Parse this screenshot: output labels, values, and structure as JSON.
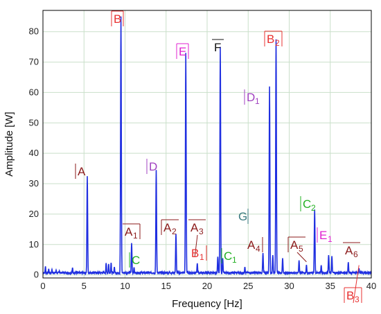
{
  "chart_data": {
    "type": "line",
    "xlabel": "Frequency [Hz]",
    "ylabel": "Amplitude [W]",
    "xlim": [
      0,
      40
    ],
    "ylim": [
      -1,
      87
    ],
    "xticks": [
      0,
      5,
      10,
      15,
      20,
      25,
      30,
      35,
      40
    ],
    "yticks": [
      0,
      10,
      20,
      30,
      40,
      50,
      60,
      70,
      80
    ],
    "grid": true,
    "line_color": "#1f2fe0",
    "baseline": 0.7,
    "peaks": [
      {
        "x": 0.3,
        "y": 2.8
      },
      {
        "x": 0.7,
        "y": 2.0
      },
      {
        "x": 1.1,
        "y": 1.8
      },
      {
        "x": 1.6,
        "y": 1.6
      },
      {
        "x": 2.0,
        "y": 1.4
      },
      {
        "x": 3.6,
        "y": 2.4
      },
      {
        "x": 7.7,
        "y": 3.9
      },
      {
        "x": 8.0,
        "y": 3.6
      },
      {
        "x": 8.3,
        "y": 4.0
      },
      {
        "x": 8.7,
        "y": 2.6
      },
      {
        "x": 5.4,
        "y": 32.5
      },
      {
        "x": 9.5,
        "y": 85.0
      },
      {
        "x": 10.8,
        "y": 10.5
      },
      {
        "x": 11.1,
        "y": 2.5
      },
      {
        "x": 13.8,
        "y": 34.5
      },
      {
        "x": 16.2,
        "y": 13.5
      },
      {
        "x": 17.4,
        "y": 73.0
      },
      {
        "x": 18.8,
        "y": 3.8
      },
      {
        "x": 21.3,
        "y": 6.0
      },
      {
        "x": 21.6,
        "y": 75.0
      },
      {
        "x": 21.9,
        "y": 5.5
      },
      {
        "x": 24.6,
        "y": 2.6
      },
      {
        "x": 26.8,
        "y": 7.2
      },
      {
        "x": 27.6,
        "y": 62.0
      },
      {
        "x": 28.0,
        "y": 6.5
      },
      {
        "x": 28.4,
        "y": 77.5
      },
      {
        "x": 29.2,
        "y": 5.5
      },
      {
        "x": 31.2,
        "y": 4.8
      },
      {
        "x": 32.1,
        "y": 3.3
      },
      {
        "x": 33.1,
        "y": 21.5
      },
      {
        "x": 33.9,
        "y": 3.2
      },
      {
        "x": 34.8,
        "y": 6.5
      },
      {
        "x": 35.2,
        "y": 6.2
      },
      {
        "x": 37.2,
        "y": 4.2
      },
      {
        "x": 38.5,
        "y": 2.2
      }
    ],
    "annotations": [
      {
        "label": "A",
        "sub": "",
        "color": "#8b1a1a",
        "x": 5.4,
        "y": 32.5,
        "box": "left"
      },
      {
        "label": "B",
        "sub": "",
        "color": "#e83030",
        "x": 9.5,
        "y": 85.0,
        "box": "both"
      },
      {
        "label": "A",
        "sub": "1",
        "color": "#8b1a1a",
        "x": 10.8,
        "y": 10.5,
        "box": "top-right"
      },
      {
        "label": "C",
        "sub": "",
        "color": "#22b022",
        "x": 11.1,
        "y": 2.5,
        "box": "left"
      },
      {
        "label": "D",
        "sub": "",
        "color": "#a040c0",
        "x": 13.8,
        "y": 34.5,
        "box": "left"
      },
      {
        "label": "A",
        "sub": "2",
        "color": "#8b1a1a",
        "x": 16.2,
        "y": 13.5,
        "box": "top-left"
      },
      {
        "label": "E",
        "sub": "",
        "color": "#e020d0",
        "x": 17.4,
        "y": 73.0,
        "box": "both"
      },
      {
        "label": "A",
        "sub": "3",
        "color": "#8b1a1a",
        "x": 18.5,
        "y": 23.0,
        "box": "top"
      },
      {
        "label": "B",
        "sub": "1",
        "color": "#e83030",
        "x": 18.8,
        "y": 3.8,
        "box": "right"
      },
      {
        "label": "F",
        "sub": "",
        "color": "#111111",
        "x": 21.6,
        "y": 75.0,
        "box": "top"
      },
      {
        "label": "C",
        "sub": "1",
        "color": "#22b022",
        "x": 21.9,
        "y": 5.5,
        "box": "left"
      },
      {
        "label": "G",
        "sub": "",
        "color": "#3a7a80",
        "x": 24.6,
        "y": 2.6,
        "box": "right"
      },
      {
        "label": "A",
        "sub": "4",
        "color": "#8b1a1a",
        "x": 26.8,
        "y": 7.2,
        "box": "right"
      },
      {
        "label": "D",
        "sub": "1",
        "color": "#a040c0",
        "x": 27.6,
        "y": 62.0,
        "box": "left"
      },
      {
        "label": "B",
        "sub": "2",
        "color": "#e83030",
        "x": 28.4,
        "y": 77.5,
        "box": "both"
      },
      {
        "label": "A",
        "sub": "5",
        "color": "#8b1a1a",
        "x": 32.1,
        "y": 3.3,
        "box": "top-left"
      },
      {
        "label": "C",
        "sub": "2",
        "color": "#22b022",
        "x": 33.1,
        "y": 21.5,
        "box": "left"
      },
      {
        "label": "E",
        "sub": "1",
        "color": "#e020d0",
        "x": 34.8,
        "y": 6.5,
        "box": "left"
      },
      {
        "label": "A",
        "sub": "6",
        "color": "#8b1a1a",
        "x": 37.2,
        "y": 4.2,
        "box": "top"
      },
      {
        "label": "B",
        "sub": "3",
        "color": "#e83030",
        "x": 38.5,
        "y": 2.2,
        "box": "both"
      }
    ]
  }
}
